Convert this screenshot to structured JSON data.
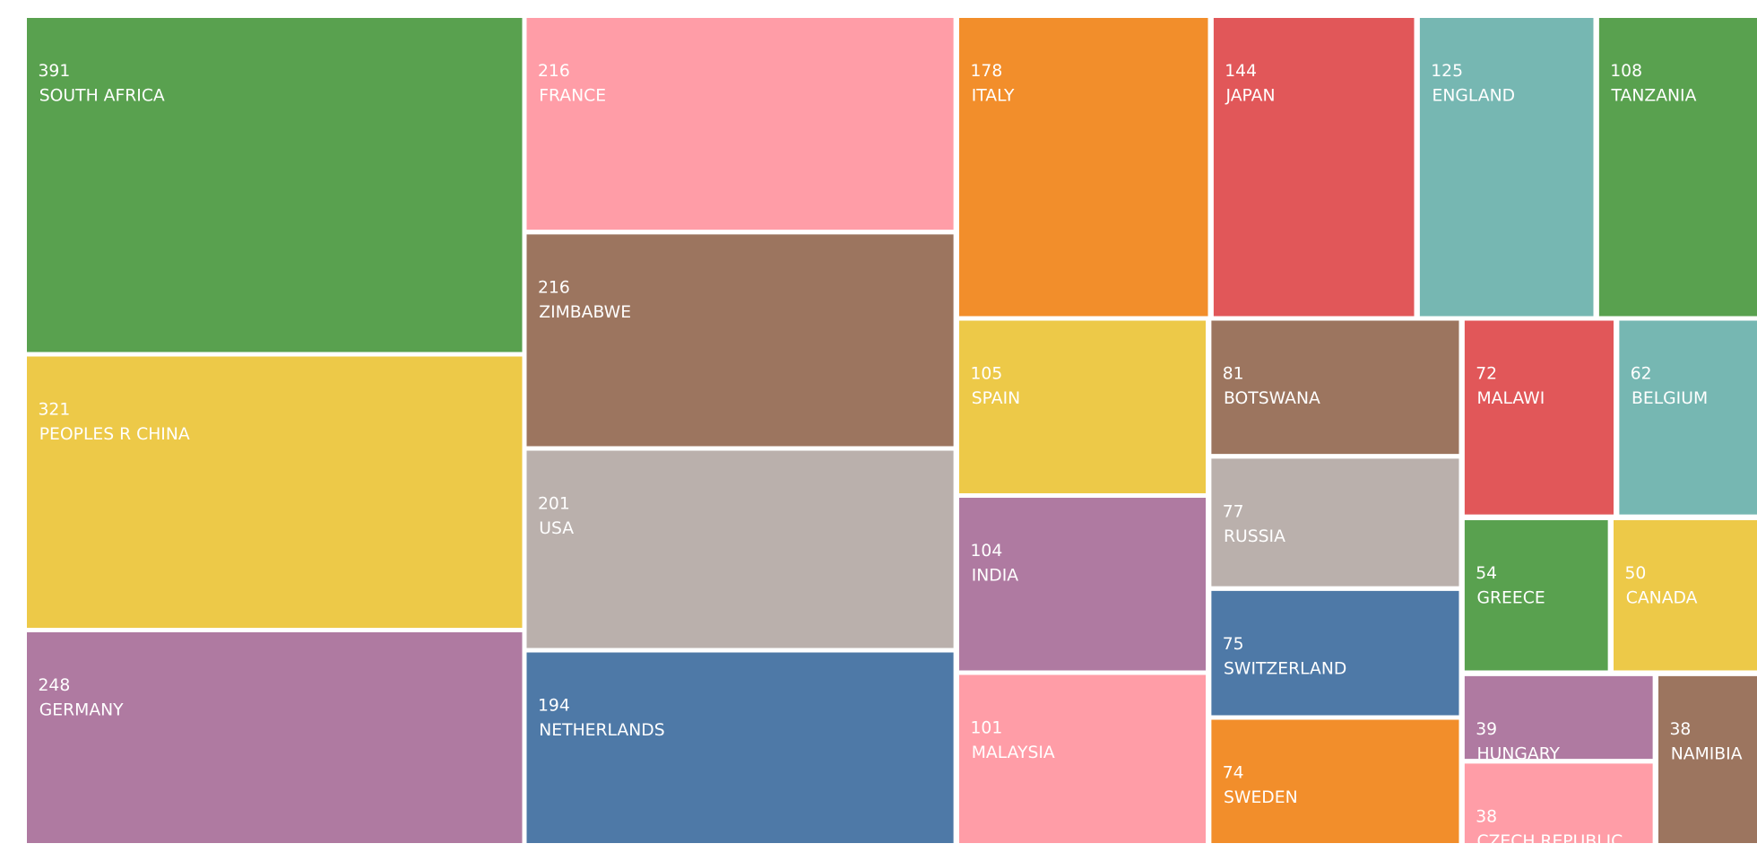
{
  "chart_data": {
    "type": "treemap",
    "categories": [
      "SOUTH AFRICA",
      "PEOPLES R CHINA",
      "GERMANY",
      "FRANCE",
      "ZIMBABWE",
      "USA",
      "NETHERLANDS",
      "ITALY",
      "JAPAN",
      "ENGLAND",
      "TANZANIA",
      "SPAIN",
      "INDIA",
      "MALAYSIA",
      "BOTSWANA",
      "RUSSIA",
      "SWITZERLAND",
      "SWEDEN",
      "MALAWI",
      "BELGIUM",
      "GREECE",
      "CANADA",
      "HUNGARY",
      "CZECH REPUBLIC",
      "NAMIBIA"
    ],
    "values": [
      391,
      321,
      248,
      216,
      216,
      201,
      194,
      178,
      144,
      125,
      108,
      105,
      104,
      101,
      81,
      77,
      75,
      74,
      72,
      62,
      54,
      50,
      39,
      38,
      38
    ],
    "colors": [
      "#59a14f",
      "#edc948",
      "#af7aa1",
      "#ff9da7",
      "#9c755f",
      "#bab0ac",
      "#4e79a7",
      "#f28e2b",
      "#e15759",
      "#76b7b2",
      "#59a14f",
      "#edc948",
      "#af7aa1",
      "#ff9da7",
      "#9c755f",
      "#bab0ac",
      "#4e79a7",
      "#f28e2b",
      "#e15759",
      "#76b7b2",
      "#59a14f",
      "#edc948",
      "#af7aa1",
      "#ff9da7",
      "#9c755f"
    ]
  }
}
